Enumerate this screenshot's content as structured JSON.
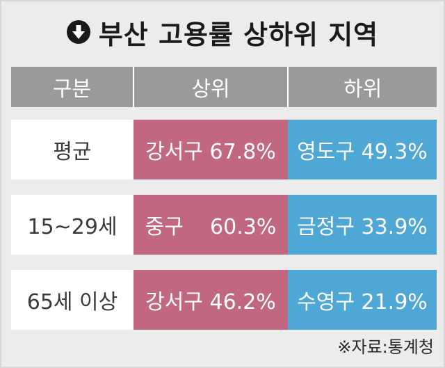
{
  "title": {
    "icon": "arrow-down-circle-icon",
    "text": "부산 고용률 상하위 지역"
  },
  "table": {
    "headers": [
      "구분",
      "상위",
      "하위"
    ],
    "rows": [
      {
        "label": "평균",
        "top": "강서구 67.8%",
        "bottom": "영도구 49.3%"
      },
      {
        "label": "15~29세",
        "top": "중구    60.3%",
        "bottom": "금정구 33.9%"
      },
      {
        "label": "65세 이상",
        "top": "강서구 46.2%",
        "bottom": "수영구 21.9%"
      }
    ]
  },
  "colors": {
    "header_bg": "#9a9a9a",
    "top_bg": "#c26781",
    "bottom_bg": "#4fa7d6",
    "panel_bg": "#ececec"
  },
  "source": "※자료:통계청"
}
